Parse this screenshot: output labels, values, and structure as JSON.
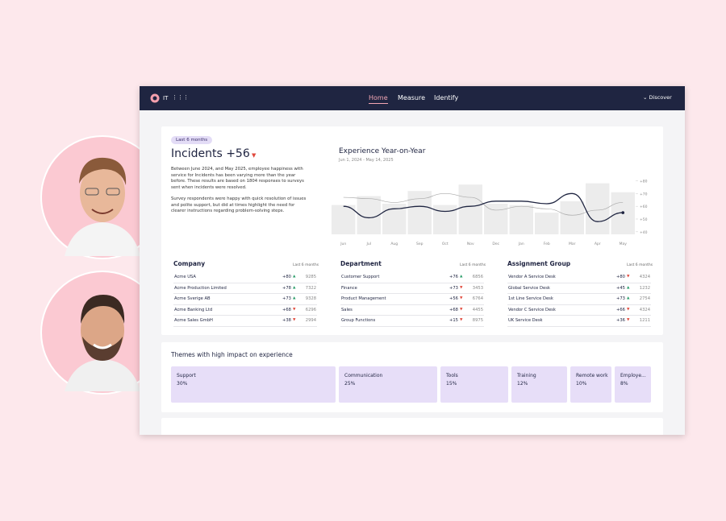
{
  "nav": {
    "brand": "IT",
    "links": [
      "Home",
      "Measure",
      "Identify"
    ],
    "discover": "Discover"
  },
  "summary": {
    "badge": "Last 6 months",
    "title": "Incidents +56",
    "paragraphs": [
      "Between June 2024, and May 2025, employee happiness with service for Incidents has been varying more than the year before. These results are based on 1804 responses to surveys sent when incidents were resolved.",
      "Survey respondents were happy with quick resolution of issues and polite support, but did at times highlight the need for clearer instructions regarding problem-solving steps."
    ]
  },
  "chart_data": {
    "type": "bar-line",
    "title": "Experience Year-on-Year",
    "subtitle": "Jun 1, 2024 - May 14, 2025",
    "categories": [
      "Jun",
      "Jul",
      "Aug",
      "Sep",
      "Oct",
      "Nov",
      "Dec",
      "Jan",
      "Feb",
      "Mar",
      "Apr",
      "May"
    ],
    "series": [
      {
        "type": "bar",
        "color": "#ececec",
        "values": [
          61,
          68,
          62,
          72,
          61,
          77,
          62,
          61,
          55,
          64,
          78,
          71
        ]
      },
      {
        "type": "line",
        "color": "#aaaaaa",
        "values": [
          67,
          66,
          63,
          66,
          70,
          67,
          57,
          60,
          58,
          53,
          57,
          63
        ]
      },
      {
        "type": "line",
        "color": "#1f2541",
        "values": [
          60,
          51,
          58,
          60,
          56,
          60,
          64,
          64,
          62,
          70,
          48,
          55
        ]
      }
    ],
    "ylim": [
      38,
      86
    ],
    "yticks": [
      {
        "value": 40,
        "label": "+40"
      },
      {
        "value": 50,
        "label": "+50"
      },
      {
        "value": 60,
        "label": "+60"
      },
      {
        "value": 70,
        "label": "+70"
      },
      {
        "value": 80,
        "label": "+80"
      }
    ]
  },
  "tables": [
    {
      "title": "Company",
      "period": "Last 6 months",
      "rows": [
        {
          "name": "Acme USA",
          "score": "+80",
          "trend": "up",
          "count": "9285"
        },
        {
          "name": "Acme Production Limited",
          "score": "+78",
          "trend": "up",
          "count": "7322"
        },
        {
          "name": "Acme Sverige AB",
          "score": "+73",
          "trend": "up",
          "count": "9328"
        },
        {
          "name": "Acme Banking Ltd",
          "score": "+68",
          "trend": "down",
          "count": "6296"
        },
        {
          "name": "Acme Sales GmbH",
          "score": "+38",
          "trend": "down",
          "count": "2994"
        }
      ]
    },
    {
      "title": "Department",
      "period": "Last 6 months",
      "rows": [
        {
          "name": "Customer Support",
          "score": "+76",
          "trend": "up",
          "count": "6856"
        },
        {
          "name": "Finance",
          "score": "+73",
          "trend": "down",
          "count": "3453"
        },
        {
          "name": "Product Management",
          "score": "+56",
          "trend": "down",
          "count": "6764"
        },
        {
          "name": "Sales",
          "score": "+68",
          "trend": "down",
          "count": "4455"
        },
        {
          "name": "Group Functions",
          "score": "+15",
          "trend": "down",
          "count": "8975"
        }
      ]
    },
    {
      "title": "Assignment Group",
      "period": "Last 6 months",
      "rows": [
        {
          "name": "Vendor A Service Desk",
          "score": "+80",
          "trend": "down",
          "count": "4324"
        },
        {
          "name": "Global Service Desk",
          "score": "+45",
          "trend": "up",
          "count": "1232"
        },
        {
          "name": "1st Line Service Desk",
          "score": "+73",
          "trend": "up",
          "count": "2754"
        },
        {
          "name": "Vendor C Service Desk",
          "score": "+66",
          "trend": "down",
          "count": "4324"
        },
        {
          "name": "UK Service Desk",
          "score": "+36",
          "trend": "down",
          "count": "1211"
        }
      ]
    }
  ],
  "themes": {
    "title": "Themes with high impact on experience",
    "items": [
      {
        "name": "Support",
        "value": "30%"
      },
      {
        "name": "Communication",
        "value": "25%"
      },
      {
        "name": "Tools",
        "value": "15%"
      },
      {
        "name": "Training",
        "value": "12%"
      },
      {
        "name": "Remote work",
        "value": "10%"
      },
      {
        "name": "Employe...",
        "value": "8%"
      }
    ]
  }
}
